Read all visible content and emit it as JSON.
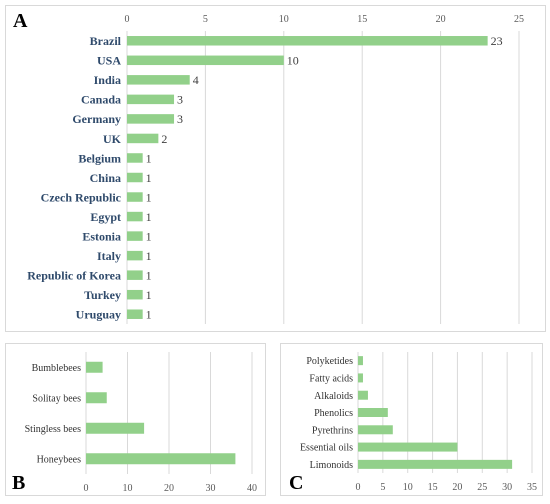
{
  "chart_data": [
    {
      "panel": "A",
      "type": "bar",
      "orientation": "horizontal",
      "categories": [
        "Brazil",
        "USA",
        "India",
        "Canada",
        "Germany",
        "UK",
        "Belgium",
        "China",
        "Czech Republic",
        "Egypt",
        "Estonia",
        "Italy",
        "Republic of Korea",
        "Turkey",
        "Uruguay"
      ],
      "values": [
        23,
        10,
        4,
        3,
        3,
        2,
        1,
        1,
        1,
        1,
        1,
        1,
        1,
        1,
        1
      ],
      "data_labels": true,
      "xlim": [
        0,
        25
      ],
      "xticks": [
        0,
        5,
        10,
        15,
        20,
        25
      ],
      "xaxis_position": "top",
      "grid": true,
      "bar_color": "#92d08a"
    },
    {
      "panel": "B",
      "type": "bar",
      "orientation": "horizontal",
      "categories": [
        "Bumblebees",
        "Solitay bees",
        "Stingless bees",
        "Honeybees"
      ],
      "values": [
        4,
        5,
        14,
        36
      ],
      "xlim": [
        0,
        40
      ],
      "xticks": [
        0,
        10,
        20,
        30,
        40
      ],
      "xaxis_position": "bottom",
      "grid": true,
      "bar_color": "#92d08a"
    },
    {
      "panel": "C",
      "type": "bar",
      "orientation": "horizontal",
      "categories": [
        "Polyketides",
        "Fatty acids",
        "Alkaloids",
        "Phenolics",
        "Pyrethrins",
        "Essential oils",
        "Limonoids"
      ],
      "values": [
        1,
        1,
        2,
        6,
        7,
        20,
        31
      ],
      "xlim": [
        0,
        35
      ],
      "xticks": [
        0,
        5,
        10,
        15,
        20,
        25,
        30,
        35
      ],
      "xaxis_position": "bottom",
      "grid": true,
      "bar_color": "#92d08a"
    }
  ],
  "panels": {
    "a_letter": "A",
    "b_letter": "B",
    "c_letter": "C"
  }
}
